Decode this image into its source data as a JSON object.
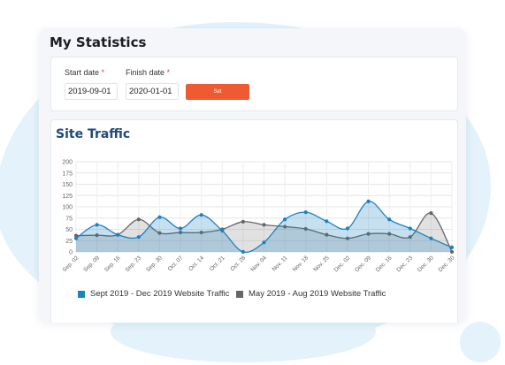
{
  "page": {
    "title": "My Statistics"
  },
  "filters": {
    "start_label": "Start date",
    "finish_label": "Finish date",
    "required_mark": "*",
    "start_value": "2019-09-01",
    "finish_value": "2020-01-01",
    "set_label": "Set"
  },
  "chart_section": {
    "title": "Site Traffic"
  },
  "colors": {
    "series_blue": "#1a82c3",
    "series_gray": "#666666",
    "button": "#f05a32",
    "heading": "#1e4b78"
  },
  "chart_data": {
    "type": "area",
    "title": "",
    "xlabel": "",
    "ylabel": "",
    "ylim": [
      0,
      200
    ],
    "yticks": [
      0,
      25,
      50,
      75,
      100,
      125,
      150,
      175,
      200
    ],
    "grid": true,
    "legend_position": "bottom",
    "categories": [
      "Sep. 02",
      "Sep. 09",
      "Sep. 16",
      "Sep. 23",
      "Sep. 30",
      "Oct. 07",
      "Oct. 14",
      "Oct. 21",
      "Oct. 28",
      "Nov. 04",
      "Nov. 11",
      "Nov. 18",
      "Nov. 25",
      "Dec. 02",
      "Dec. 09",
      "Dec. 16",
      "Dec. 23",
      "Dec. 30",
      "Dec. 30"
    ],
    "series": [
      {
        "name": "Sept 2019 - Dec 2019 Website Traffic",
        "color": "#1a82c3",
        "values": [
          30,
          60,
          38,
          33,
          77,
          52,
          82,
          47,
          0,
          21,
          72,
          88,
          68,
          52,
          112,
          72,
          52,
          30,
          10
        ]
      },
      {
        "name": "May 2019 - Aug 2019 Website Traffic",
        "color": "#666666",
        "values": [
          36,
          37,
          38,
          72,
          42,
          43,
          43,
          50,
          67,
          60,
          56,
          51,
          38,
          30,
          40,
          40,
          33,
          86,
          0
        ]
      }
    ]
  }
}
